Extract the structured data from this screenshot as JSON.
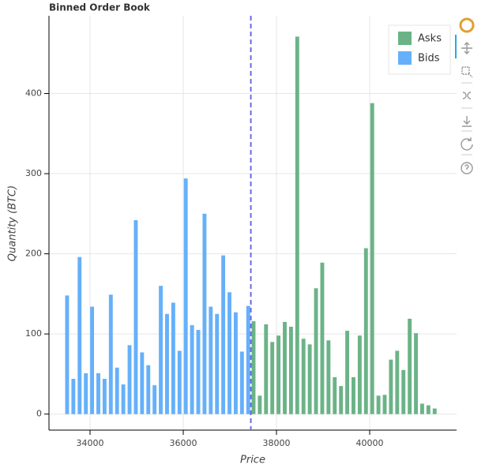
{
  "chart_data": {
    "type": "bar",
    "title": "Binned Order Book",
    "x_label": "Price",
    "y_label": "Quantity (BTC)",
    "series": [
      {
        "name": "Asks",
        "color": "#6bb387",
        "x": [
          37508,
          37642,
          37776,
          37910,
          38044,
          38178,
          38312,
          38446,
          38580,
          38714,
          38848,
          38982,
          39116,
          39250,
          39384,
          39518,
          39652,
          39786,
          39920,
          40054,
          40188,
          40322,
          40456,
          40590,
          40724,
          40858,
          40992,
          41126,
          41260,
          41394
        ],
        "values": [
          116,
          23,
          112,
          90,
          98,
          115,
          109,
          471,
          94,
          87,
          157,
          189,
          92,
          46,
          35,
          104,
          46,
          98,
          207,
          388,
          23,
          24,
          68,
          79,
          55,
          119,
          101,
          13,
          11,
          7
        ]
      },
      {
        "name": "Bids",
        "color": "#66b0fa",
        "x": [
          33508,
          33642,
          33776,
          33910,
          34044,
          34178,
          34312,
          34446,
          34580,
          34714,
          34848,
          34982,
          35116,
          35250,
          35384,
          35518,
          35652,
          35786,
          35920,
          36054,
          36188,
          36322,
          36456,
          36590,
          36724,
          36858,
          36992,
          37126,
          37260,
          37394
        ],
        "values": [
          148,
          44,
          196,
          51,
          134,
          51,
          44,
          149,
          58,
          37,
          86,
          242,
          77,
          61,
          36,
          160,
          125,
          139,
          79,
          294,
          111,
          105,
          250,
          134,
          125,
          198,
          152,
          127,
          78,
          135
        ]
      }
    ],
    "vline": {
      "x": 37450,
      "color": "#6a6ae6"
    },
    "xlim": [
      33119,
      41864
    ],
    "xticks": [
      34000,
      36000,
      38000,
      40000
    ],
    "ylim": [
      -20,
      497
    ],
    "yticks": [
      0,
      100,
      200,
      300,
      400
    ],
    "grid": true,
    "legend": "top-right"
  }
}
